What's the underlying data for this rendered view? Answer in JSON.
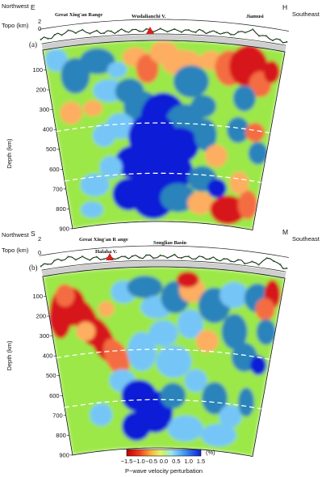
{
  "colors": {
    "background": "#9ce84a",
    "slow_strong": "#d7191c",
    "slow_mid": "#f46d43",
    "slow_weak": "#fdae61",
    "neutral": "#c7f36f",
    "fast_weak": "#74c6f7",
    "fast_mid": "#2b83ba",
    "fast_strong": "#0b1fd6",
    "topo_line": "#111111",
    "topo_marker": "#1d7a1d",
    "volcano": "#d62020"
  },
  "panels": [
    {
      "id": "a",
      "label": "(a)",
      "left_letter": "E",
      "right_letter": "H",
      "left_direction": "Northwest",
      "right_direction": "Southeast",
      "topo_label": "Topo (km)",
      "topo_ticks": [
        "2",
        "0"
      ],
      "depth_label": "Depth (km)",
      "depth_ticks": [
        "100",
        "200",
        "300",
        "400",
        "500",
        "600",
        "700",
        "800",
        "900"
      ],
      "places": [
        "Great Xing'an Range",
        "Wudalianchi V.",
        "Jiamusi"
      ],
      "volcano_icon": "volcano-triangle-icon"
    },
    {
      "id": "b",
      "label": "(b)",
      "left_letter": "S",
      "right_letter": "M",
      "left_direction": "Northwest",
      "right_direction": "Southeast",
      "topo_label": "Topo (km)",
      "topo_ticks": [
        "2",
        "0"
      ],
      "depth_label": "Depth (km)",
      "depth_ticks": [
        "100",
        "200",
        "300",
        "400",
        "500",
        "600",
        "700",
        "800",
        "900"
      ],
      "places": [
        "Great Xing'an R ange",
        "Songliao Basin",
        "Halaha V."
      ],
      "volcano_icon": "volcano-triangle-icon"
    }
  ],
  "colorbar": {
    "unit": "(%)",
    "ticks": [
      "−1.5",
      "−1.0",
      "−0.5",
      "0.0",
      "0.5",
      "1.0",
      "1.5"
    ],
    "title": "P−wave velocity perturbation"
  }
}
